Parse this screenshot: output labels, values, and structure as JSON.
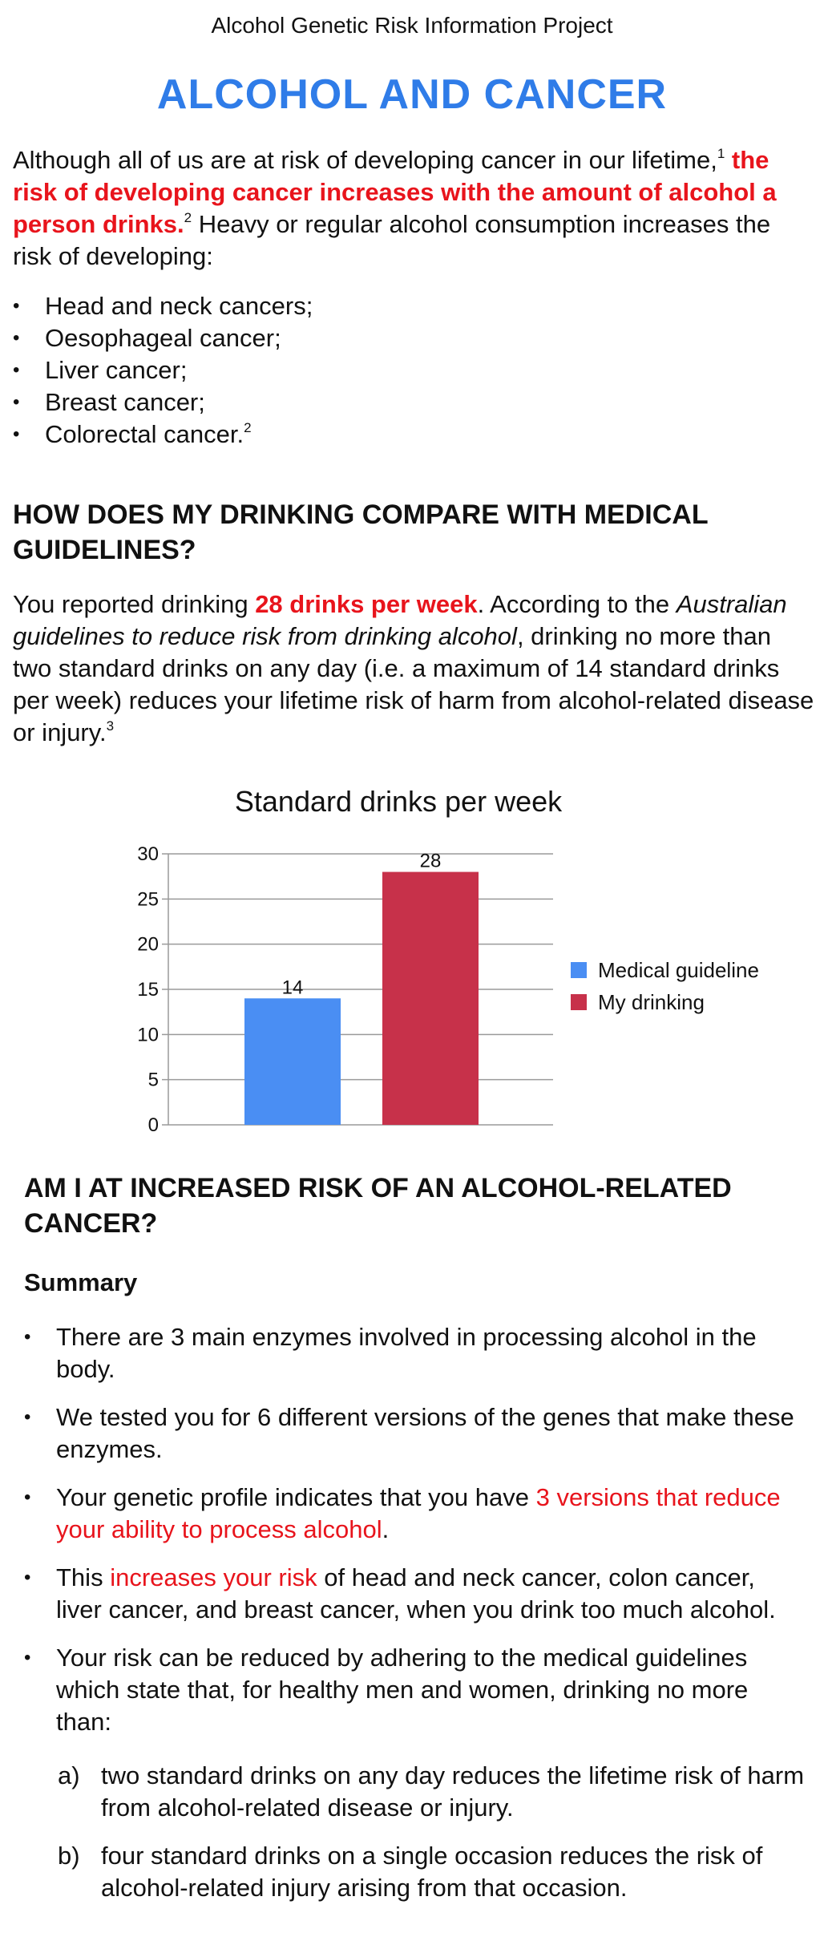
{
  "header": {
    "project": "Alcohol Genetic Risk Information Project",
    "title": "ALCOHOL AND CANCER"
  },
  "intro": {
    "p1": "Although all of us are at risk of developing cancer in our lifetime,",
    "sup1": "1",
    "p2": " the risk of developing cancer increases with the amount of alcohol a person drinks",
    "p3": ".",
    "sup2": "2",
    "p4": " Heavy or regular alcohol consumption increases the risk of developing:"
  },
  "risks": [
    "Head and neck cancers;",
    "Oesophageal cancer;",
    "Liver cancer;",
    "Breast cancer;",
    "Colorectal cancer."
  ],
  "risks_last_sup": "2",
  "section1": {
    "heading": "HOW DOES MY DRINKING COMPARE WITH MEDICAL GUIDELINES?",
    "p1": "You reported drinking ",
    "drinks": "28 drinks per week",
    "p2": ". According to the ",
    "guideline": "Australian guidelines to reduce risk from drinking alcohol",
    "p3": ", drinking no more than two standard drinks on any day (i.e. a maximum of 14 standard drinks per week) reduces your lifetime risk of harm from alcohol-related disease or injury.",
    "sup": "3"
  },
  "chart_data": {
    "type": "bar",
    "title": "Standard drinks per week",
    "ylim": [
      0,
      30
    ],
    "yticks": [
      0,
      5,
      10,
      15,
      20,
      25,
      30
    ],
    "grid": true,
    "legend_position": "right",
    "series": [
      {
        "name": "Medical guideline",
        "value": 14,
        "color": "#4a8ef3"
      },
      {
        "name": "My drinking",
        "value": 28,
        "color": "#c7314a"
      }
    ]
  },
  "section2": {
    "heading": "AM I AT INCREASED RISK OF AN ALCOHOL-RELATED CANCER?",
    "summary": "Summary",
    "b1": "There are 3 main enzymes involved in processing alcohol in the body.",
    "b2": "We tested you for 6 different versions of the genes that make these enzymes.",
    "b3a": "Your genetic profile indicates that you have ",
    "b3red": "3 versions that reduce your ability to process alcohol",
    "b3b": ".",
    "b4a": "This ",
    "b4red": "increases your risk",
    "b4b": " of head and neck cancer, colon cancer, liver cancer, and breast cancer, when you drink too much alcohol.",
    "b5": "Your risk can be reduced by adhering to the medical guidelines which state that, for healthy men and women, drinking no more than:",
    "a_label": "a)",
    "a_text": "two standard drinks on any day reduces the lifetime risk of harm from alcohol-related disease or injury.",
    "b_label": "b)",
    "b_text": "four standard drinks on a single occasion reduces the risk of alcohol-related injury arising from that occasion."
  }
}
